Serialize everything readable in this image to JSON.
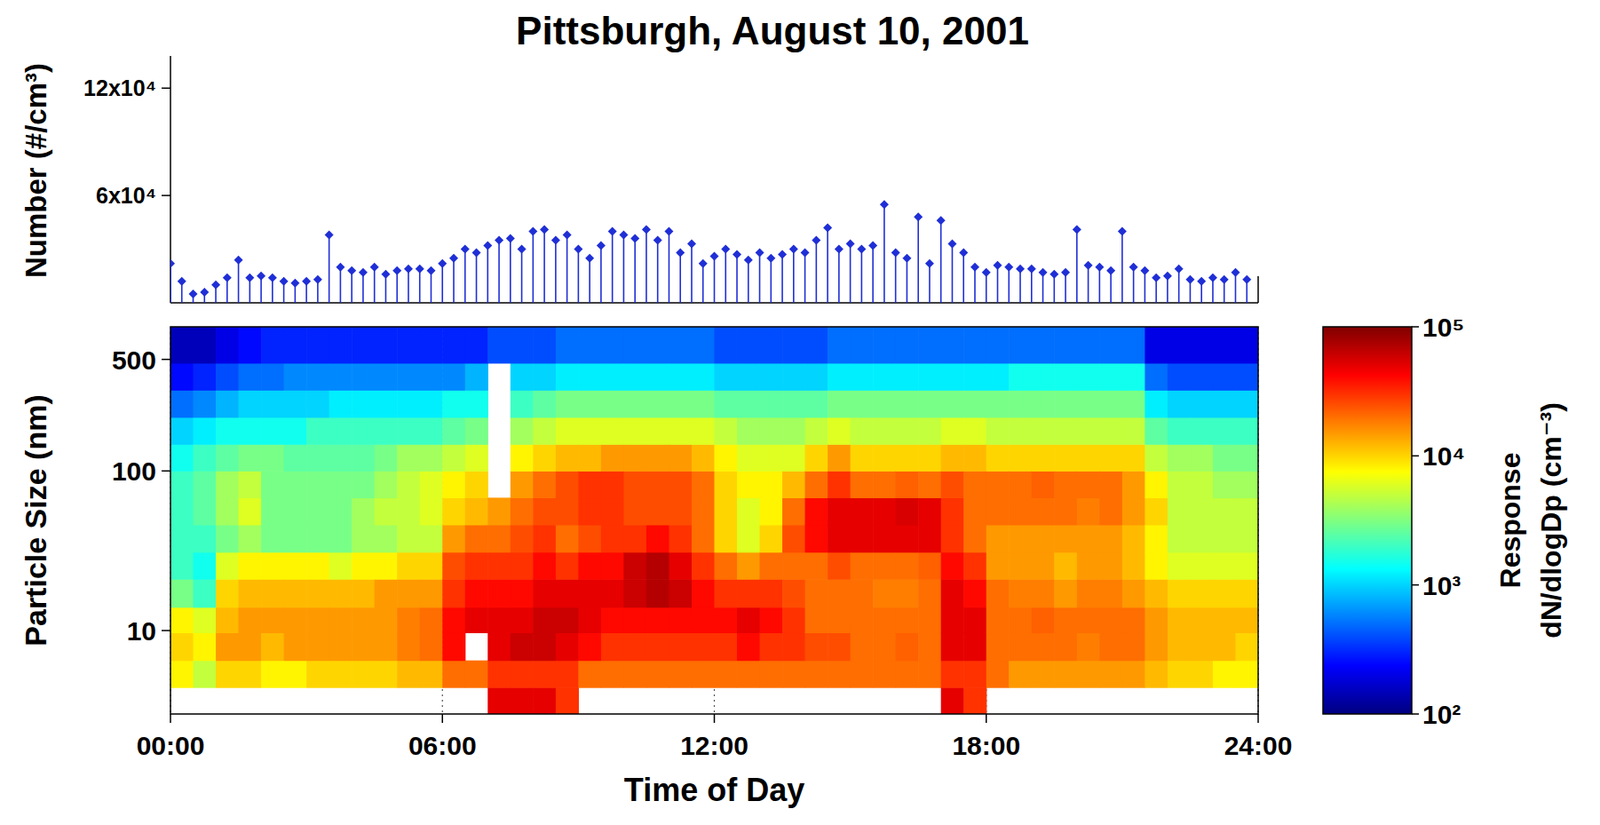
{
  "chart_data": [
    {
      "type": "stem",
      "title": "Pittsburgh, August 10, 2001",
      "y_label": "Number (#/cm³)",
      "color": "#1f2fd6",
      "marker": "diamond",
      "tick_labels": "y",
      "grid": false,
      "xlim": [
        0,
        24
      ],
      "ylim": [
        0,
        138000
      ],
      "yticks": [
        {
          "value": 60000,
          "label": "6x10⁴"
        },
        {
          "value": 120000,
          "label": "12x10⁴"
        }
      ],
      "x": [
        0,
        0.25,
        0.5,
        0.75,
        1,
        1.25,
        1.5,
        1.75,
        2,
        2.25,
        2.5,
        2.75,
        3,
        3.25,
        3.5,
        3.75,
        4,
        4.25,
        4.5,
        4.75,
        5,
        5.25,
        5.5,
        5.75,
        6,
        6.25,
        6.5,
        6.75,
        7,
        7.25,
        7.5,
        7.75,
        8,
        8.25,
        8.5,
        8.75,
        9,
        9.25,
        9.5,
        9.75,
        10,
        10.25,
        10.5,
        10.75,
        11,
        11.25,
        11.5,
        11.75,
        12,
        12.25,
        12.5,
        12.75,
        13,
        13.25,
        13.5,
        13.75,
        14,
        14.25,
        14.5,
        14.75,
        15,
        15.25,
        15.5,
        15.75,
        16,
        16.25,
        16.5,
        16.75,
        17,
        17.25,
        17.5,
        17.75,
        18,
        18.25,
        18.5,
        18.75,
        19,
        19.25,
        19.5,
        19.75,
        20,
        20.25,
        20.5,
        20.75,
        21,
        21.25,
        21.5,
        21.75,
        22,
        22.25,
        22.5,
        22.75,
        23,
        23.25,
        23.5,
        23.75
      ],
      "values": [
        22000,
        12000,
        5000,
        6000,
        10000,
        14000,
        24000,
        14000,
        15000,
        14000,
        12000,
        11000,
        12000,
        13000,
        38000,
        20000,
        18000,
        17000,
        20000,
        16000,
        18000,
        19000,
        19000,
        18000,
        22000,
        25000,
        30000,
        28000,
        32000,
        35000,
        36000,
        30000,
        40000,
        41000,
        35000,
        38000,
        30000,
        25000,
        32000,
        40000,
        38000,
        36000,
        41000,
        35000,
        40000,
        28000,
        33000,
        22000,
        26000,
        30000,
        27000,
        24000,
        28000,
        25000,
        27000,
        30000,
        28000,
        35000,
        42000,
        30000,
        33000,
        30000,
        32000,
        55000,
        28000,
        25000,
        48000,
        22000,
        46000,
        33000,
        28000,
        20000,
        17000,
        21000,
        20000,
        19000,
        19000,
        17000,
        16000,
        17000,
        41000,
        21000,
        20000,
        18000,
        40000,
        20000,
        18000,
        14000,
        15000,
        19000,
        13000,
        12000,
        14000,
        13000,
        17000,
        13000
      ]
    },
    {
      "type": "heatmap",
      "x_label": "Time of Day",
      "y_label": "Particle Size (nm)",
      "log": "y",
      "grid": true,
      "xlim": [
        0,
        24
      ],
      "ylim": [
        3,
        800
      ],
      "xticks": [
        {
          "value": 0,
          "label": "00:00"
        },
        {
          "value": 6,
          "label": "06:00"
        },
        {
          "value": 12,
          "label": "12:00"
        },
        {
          "value": 18,
          "label": "18:00"
        },
        {
          "value": 24,
          "label": "24:00"
        }
      ],
      "yticks": [
        10,
        100,
        500
      ],
      "x_bins": [
        0,
        0.5,
        1,
        1.5,
        2,
        2.5,
        3,
        3.5,
        4,
        4.5,
        5,
        5.5,
        6,
        6.5,
        7,
        7.5,
        8,
        8.5,
        9,
        9.5,
        10,
        10.5,
        11,
        11.5,
        12,
        12.5,
        13,
        13.5,
        14,
        14.5,
        15,
        15.5,
        16,
        16.5,
        17,
        17.5,
        18,
        18.5,
        19,
        19.5,
        20,
        20.5,
        21,
        21.5,
        22,
        22.5,
        23,
        23.5,
        24
      ],
      "y_bins": [
        3,
        4.4,
        6.5,
        9.7,
        14,
        21,
        31,
        46,
        68,
        100,
        147,
        217,
        321,
        474,
        800
      ],
      "cells": [
        [
          null,
          8000.0,
          10000.0,
          8000.0,
          3000.0,
          2000.0,
          2000.0,
          2000.0,
          2000.0,
          1500.0,
          1000.0,
          500.0,
          250.0,
          150.0
        ],
        [
          null,
          5000.0,
          8000.0,
          6000.0,
          2000.0,
          1500.0,
          2000.0,
          2500.0,
          2500.0,
          2000.0,
          1200.0,
          600.0,
          300.0,
          150.0
        ],
        [
          null,
          10000.0,
          15000.0,
          12000.0,
          10000.0,
          6000.0,
          3000.0,
          4000.0,
          4000.0,
          2500.0,
          1500.0,
          800.0,
          400.0,
          200.0
        ],
        [
          null,
          10000.0,
          15000.0,
          15000.0,
          12000.0,
          8000.0,
          4000.0,
          6000.0,
          5000.0,
          3000.0,
          1500.0,
          1000.0,
          500.0,
          250.0
        ],
        [
          null,
          8000.0,
          12000.0,
          15000.0,
          12000.0,
          8000.0,
          3000.0,
          3000.0,
          3000.0,
          3000.0,
          1500.0,
          1000.0,
          500.0,
          300.0
        ],
        [
          null,
          8000.0,
          15000.0,
          15000.0,
          12000.0,
          8000.0,
          3000.0,
          3000.0,
          3000.0,
          2500.0,
          1500.0,
          1000.0,
          600.0,
          300.0
        ],
        [
          null,
          10000.0,
          15000.0,
          15000.0,
          12000.0,
          8000.0,
          3000.0,
          3000.0,
          3000.0,
          2500.0,
          2000.0,
          1000.0,
          600.0,
          300.0
        ],
        [
          null,
          10000.0,
          15000.0,
          15000.0,
          12000.0,
          6000.0,
          3000.0,
          3000.0,
          3000.0,
          2500.0,
          2000.0,
          1200.0,
          600.0,
          300.0
        ],
        [
          null,
          10000.0,
          15000.0,
          15000.0,
          12000.0,
          8000.0,
          4000.0,
          4000.0,
          3000.0,
          2500.0,
          2000.0,
          1200.0,
          600.0,
          300.0
        ],
        [
          null,
          10000.0,
          15000.0,
          15000.0,
          15000.0,
          8000.0,
          4000.0,
          5000.0,
          4000.0,
          3000.0,
          2000.0,
          1200.0,
          600.0,
          300.0
        ],
        [
          null,
          12000.0,
          18000.0,
          18000.0,
          15000.0,
          10000.0,
          5000.0,
          5000.0,
          5000.0,
          4000.0,
          2000.0,
          1200.0,
          600.0,
          300.0
        ],
        [
          null,
          12000.0,
          20000.0,
          20000.0,
          15000.0,
          10000.0,
          5000.0,
          6000.0,
          6000.0,
          4000.0,
          2000.0,
          1200.0,
          600.0,
          300.0
        ],
        [
          null,
          20000.0,
          40000.0,
          40000.0,
          30000.0,
          25000.0,
          15000.0,
          10000.0,
          8000.0,
          5000.0,
          2500.0,
          1500.0,
          600.0,
          300.0
        ],
        [
          null,
          20000.0,
          null,
          50000.0,
          40000.0,
          30000.0,
          20000.0,
          12000.0,
          10000.0,
          6000.0,
          3000.0,
          1500.0,
          800.0,
          300.0
        ],
        [
          50000.0,
          30000.0,
          50000.0,
          50000.0,
          40000.0,
          30000.0,
          20000.0,
          15000.0,
          null,
          null,
          null,
          null,
          null,
          400.0
        ],
        [
          50000.0,
          30000.0,
          60000.0,
          50000.0,
          40000.0,
          30000.0,
          25000.0,
          20000.0,
          15000.0,
          8000.0,
          4000.0,
          2000.0,
          1000.0,
          400.0
        ],
        [
          50000.0,
          30000.0,
          60000.0,
          60000.0,
          50000.0,
          40000.0,
          30000.0,
          25000.0,
          20000.0,
          10000.0,
          5000.0,
          2500.0,
          1000.0,
          400.0
        ],
        [
          30000.0,
          30000.0,
          50000.0,
          60000.0,
          50000.0,
          30000.0,
          20000.0,
          25000.0,
          25000.0,
          12000.0,
          6000.0,
          3000.0,
          1200.0,
          500.0
        ],
        [
          null,
          20000.0,
          40000.0,
          50000.0,
          50000.0,
          40000.0,
          25000.0,
          30000.0,
          30000.0,
          12000.0,
          6000.0,
          3000.0,
          1200.0,
          500.0
        ],
        [
          null,
          20000.0,
          30000.0,
          40000.0,
          50000.0,
          40000.0,
          30000.0,
          30000.0,
          30000.0,
          15000.0,
          6000.0,
          3000.0,
          1200.0,
          500.0
        ],
        [
          null,
          20000.0,
          30000.0,
          40000.0,
          60000.0,
          60000.0,
          30000.0,
          25000.0,
          25000.0,
          15000.0,
          6000.0,
          3000.0,
          1200.0,
          500.0
        ],
        [
          null,
          20000.0,
          30000.0,
          40000.0,
          70000.0,
          70000.0,
          40000.0,
          25000.0,
          25000.0,
          15000.0,
          6000.0,
          3000.0,
          1200.0,
          500.0
        ],
        [
          null,
          20000.0,
          30000.0,
          40000.0,
          60000.0,
          50000.0,
          30000.0,
          25000.0,
          25000.0,
          15000.0,
          6000.0,
          3000.0,
          1200.0,
          500.0
        ],
        [
          null,
          20000.0,
          30000.0,
          40000.0,
          40000.0,
          30000.0,
          20000.0,
          20000.0,
          20000.0,
          12000.0,
          6000.0,
          3000.0,
          1200.0,
          500.0
        ],
        [
          null,
          20000.0,
          30000.0,
          40000.0,
          30000.0,
          20000.0,
          10000.0,
          10000.0,
          10000.0,
          8000.0,
          5000.0,
          2500.0,
          1000.0,
          400.0
        ],
        [
          null,
          20000.0,
          40000.0,
          50000.0,
          30000.0,
          15000.0,
          6000.0,
          6000.0,
          8000.0,
          6000.0,
          4000.0,
          2500.0,
          1000.0,
          400.0
        ],
        [
          null,
          20000.0,
          30000.0,
          40000.0,
          30000.0,
          20000.0,
          10000.0,
          8000.0,
          8000.0,
          6000.0,
          4000.0,
          2500.0,
          1000.0,
          400.0
        ],
        [
          null,
          20000.0,
          30000.0,
          30000.0,
          25000.0,
          20000.0,
          25000.0,
          20000.0,
          12000.0,
          6000.0,
          4000.0,
          2500.0,
          1000.0,
          400.0
        ],
        [
          null,
          20000.0,
          25000.0,
          20000.0,
          20000.0,
          20000.0,
          40000.0,
          40000.0,
          20000.0,
          10000.0,
          5000.0,
          2500.0,
          1000.0,
          400.0
        ],
        [
          null,
          20000.0,
          25000.0,
          20000.0,
          20000.0,
          25000.0,
          50000.0,
          50000.0,
          30000.0,
          15000.0,
          6000.0,
          3000.0,
          1200.0,
          500.0
        ],
        [
          null,
          20000.0,
          20000.0,
          20000.0,
          20000.0,
          20000.0,
          50000.0,
          50000.0,
          20000.0,
          10000.0,
          5000.0,
          3000.0,
          1200.0,
          500.0
        ],
        [
          null,
          20000.0,
          20000.0,
          20000.0,
          18000.0,
          20000.0,
          50000.0,
          50000.0,
          20000.0,
          10000.0,
          5000.0,
          3000.0,
          1200.0,
          500.0
        ],
        [
          null,
          20000.0,
          22000.0,
          20000.0,
          18000.0,
          20000.0,
          50000.0,
          55000.0,
          22000.0,
          10000.0,
          5000.0,
          3000.0,
          1200.0,
          500.0
        ],
        [
          null,
          20000.0,
          20000.0,
          20000.0,
          20000.0,
          22000.0,
          50000.0,
          50000.0,
          20000.0,
          10000.0,
          5000.0,
          3000.0,
          1200.0,
          500.0
        ],
        [
          50000.0,
          30000.0,
          50000.0,
          50000.0,
          50000.0,
          40000.0,
          30000.0,
          30000.0,
          25000.0,
          12000.0,
          6000.0,
          3000.0,
          1200.0,
          500.0
        ],
        [
          30000.0,
          30000.0,
          50000.0,
          50000.0,
          40000.0,
          30000.0,
          20000.0,
          20000.0,
          20000.0,
          12000.0,
          6000.0,
          3000.0,
          1200.0,
          500.0
        ],
        [
          null,
          20000.0,
          20000.0,
          20000.0,
          20000.0,
          15000.0,
          15000.0,
          20000.0,
          20000.0,
          10000.0,
          5000.0,
          3000.0,
          1200.0,
          500.0
        ],
        [
          null,
          15000.0,
          20000.0,
          20000.0,
          18000.0,
          15000.0,
          15000.0,
          20000.0,
          20000.0,
          10000.0,
          5000.0,
          3000.0,
          1500.0,
          500.0
        ],
        [
          null,
          15000.0,
          20000.0,
          22000.0,
          18000.0,
          15000.0,
          15000.0,
          20000.0,
          22000.0,
          10000.0,
          5000.0,
          3000.0,
          1500.0,
          500.0
        ],
        [
          null,
          15000.0,
          20000.0,
          20000.0,
          15000.0,
          12000.0,
          15000.0,
          20000.0,
          20000.0,
          10000.0,
          5000.0,
          3000.0,
          1500.0,
          500.0
        ],
        [
          null,
          15000.0,
          18000.0,
          20000.0,
          18000.0,
          15000.0,
          15000.0,
          18000.0,
          20000.0,
          10000.0,
          5000.0,
          3000.0,
          1500.0,
          500.0
        ],
        [
          null,
          15000.0,
          20000.0,
          20000.0,
          18000.0,
          15000.0,
          15000.0,
          20000.0,
          20000.0,
          10000.0,
          5000.0,
          3000.0,
          1500.0,
          500.0
        ],
        [
          null,
          15000.0,
          20000.0,
          20000.0,
          15000.0,
          12000.0,
          12000.0,
          15000.0,
          15000.0,
          10000.0,
          5000.0,
          3000.0,
          1500.0,
          500.0
        ],
        [
          null,
          12000.0,
          15000.0,
          15000.0,
          12000.0,
          8000.0,
          8000.0,
          10000.0,
          8000.0,
          5000.0,
          2500.0,
          1200.0,
          500.0,
          200.0
        ],
        [
          null,
          10000.0,
          12000.0,
          12000.0,
          10000.0,
          6000.0,
          5000.0,
          5000.0,
          5000.0,
          4000.0,
          2000.0,
          1000.0,
          400.0,
          200.0
        ],
        [
          null,
          10000.0,
          12000.0,
          12000.0,
          10000.0,
          6000.0,
          5000.0,
          5000.0,
          5000.0,
          4000.0,
          2000.0,
          1000.0,
          400.0,
          200.0
        ],
        [
          null,
          8000.0,
          12000.0,
          12000.0,
          10000.0,
          6000.0,
          5000.0,
          5000.0,
          4000.0,
          3000.0,
          2000.0,
          1000.0,
          400.0,
          200.0
        ],
        [
          null,
          8000.0,
          10000.0,
          12000.0,
          10000.0,
          6000.0,
          5000.0,
          5000.0,
          4000.0,
          3000.0,
          2000.0,
          1000.0,
          400.0,
          200.0
        ]
      ],
      "color_range": [
        100,
        100000
      ],
      "color_ticks": [
        {
          "value": 100,
          "label": "10²"
        },
        {
          "value": 1000,
          "label": "10³"
        },
        {
          "value": 10000,
          "label": "10⁴"
        },
        {
          "value": 100000,
          "label": "10⁵"
        }
      ],
      "color_label": [
        "Response",
        "dN/dlogDp (cm⁻³)"
      ]
    }
  ]
}
